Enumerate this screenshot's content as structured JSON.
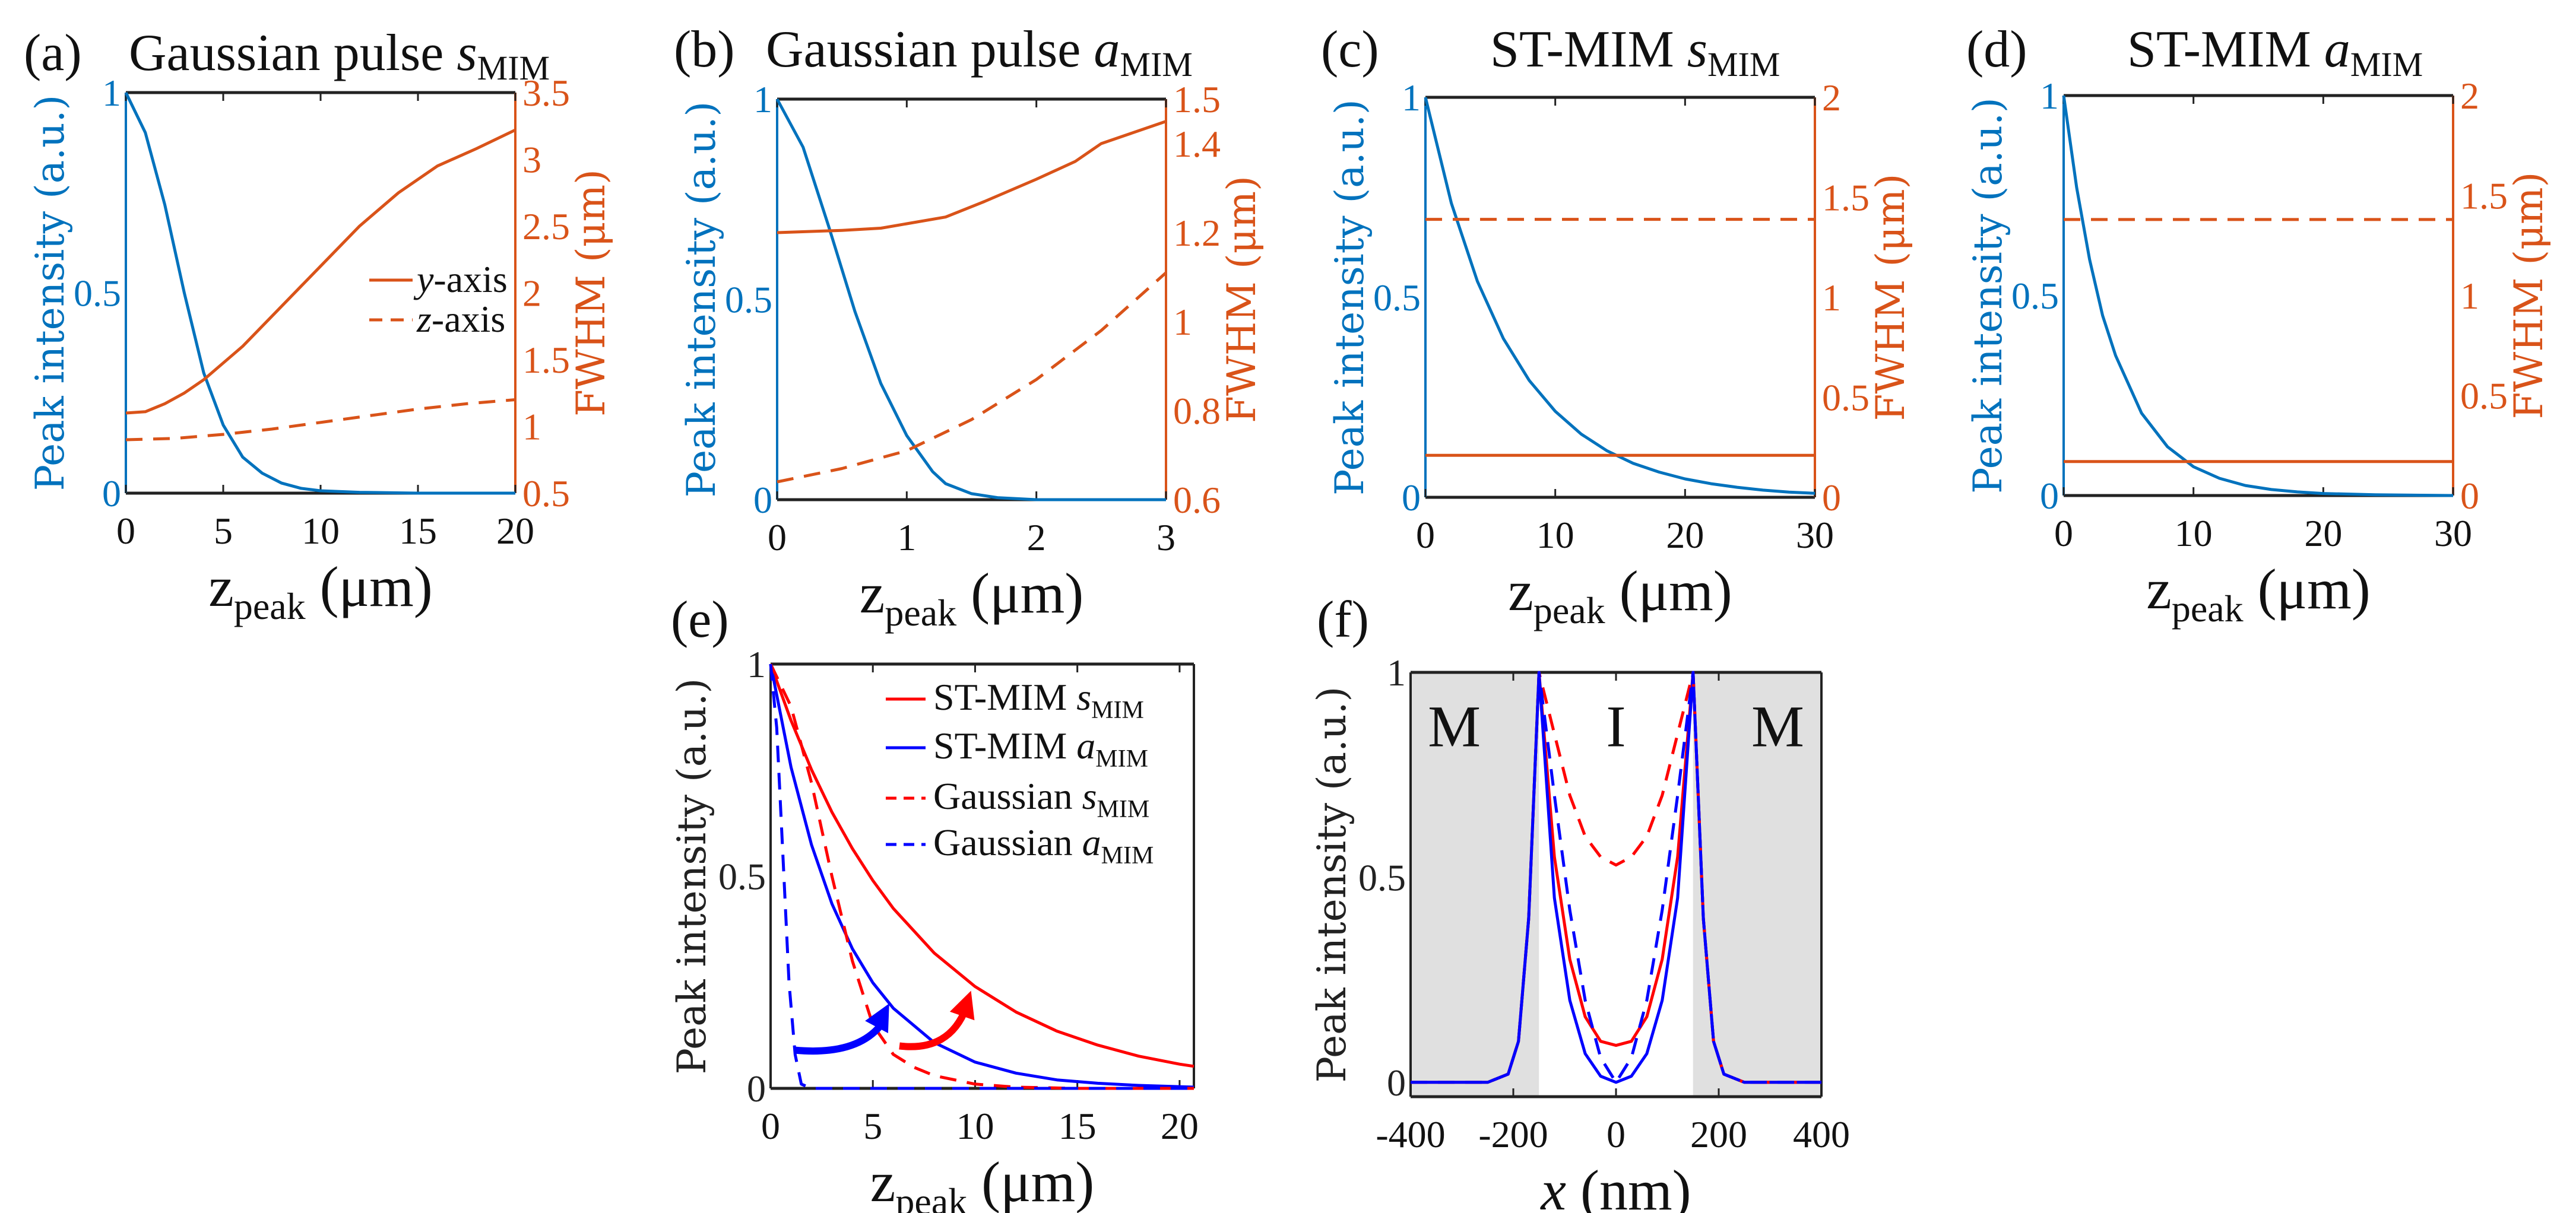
{
  "colors": {
    "intensity": "#0072BD",
    "fwhm": "#D95319",
    "red": "#FF0000",
    "blue": "#0000FF",
    "metal": "#E0E0E0",
    "frame": "#222222"
  },
  "chart_data": [
    {
      "panel": "(a)",
      "type": "line",
      "title": {
        "main": "Gaussian pulse ",
        "var": "s",
        "sub": "MIM"
      },
      "xlabel": {
        "var": "z",
        "sub": "peak",
        "unit": " (μm)"
      },
      "ylabel": "Peak intensity (a.u.)",
      "y2label": "FWHM (μm)",
      "xlim": [
        0,
        20
      ],
      "ylim": [
        0,
        1
      ],
      "y2lim": [
        0.5,
        3.5
      ],
      "xticks": [
        "0",
        "5",
        "10",
        "15",
        "20"
      ],
      "yticks": [
        "0",
        "0.5",
        "1"
      ],
      "y2ticks": [
        "0.5",
        "1",
        "1.5",
        "2",
        "2.5",
        "3",
        "3.5"
      ],
      "legend": [
        {
          "var": "y",
          "text": "-axis",
          "dash": false
        },
        {
          "var": "z",
          "text": "-axis",
          "dash": true
        }
      ],
      "series": [
        {
          "axis": "left",
          "color": "intensity",
          "dash": false,
          "x": [
            0,
            1,
            2,
            3,
            4,
            5,
            6,
            7,
            8,
            9,
            10,
            12,
            15,
            20
          ],
          "y": [
            1,
            0.9,
            0.72,
            0.5,
            0.3,
            0.17,
            0.09,
            0.05,
            0.025,
            0.012,
            0.006,
            0.002,
            0,
            0
          ]
        },
        {
          "name": "y-axis",
          "axis": "right",
          "color": "fwhm",
          "dash": false,
          "x": [
            0,
            1,
            2,
            3,
            4,
            6,
            8,
            10,
            12,
            14,
            16,
            18,
            20
          ],
          "y": [
            1.1,
            1.11,
            1.17,
            1.25,
            1.35,
            1.6,
            1.9,
            2.2,
            2.5,
            2.75,
            2.95,
            3.08,
            3.22
          ]
        },
        {
          "name": "z-axis",
          "axis": "right",
          "color": "fwhm",
          "dash": true,
          "x": [
            0,
            2.5,
            5,
            7.5,
            10,
            12.5,
            15,
            17.5,
            20
          ],
          "y": [
            0.9,
            0.91,
            0.94,
            0.98,
            1.03,
            1.08,
            1.13,
            1.17,
            1.2
          ]
        }
      ]
    },
    {
      "panel": "(b)",
      "type": "line",
      "title": {
        "main": "Gaussian pulse ",
        "var": "a",
        "sub": "MIM"
      },
      "xlabel": {
        "var": "z",
        "sub": "peak",
        "unit": "  (μm)"
      },
      "ylabel": "Peak intensity (a.u.)",
      "y2label": "FWHM (μm)",
      "xlim": [
        0,
        3
      ],
      "ylim": [
        0,
        1
      ],
      "y2lim": [
        0.6,
        1.5
      ],
      "xticks": [
        "0",
        "1",
        "2",
        "3"
      ],
      "yticks": [
        "0",
        "0.5",
        "1"
      ],
      "y2ticks": [
        "0.6",
        "0.8",
        "1",
        "1.2",
        "1.4",
        "1.5"
      ],
      "series": [
        {
          "axis": "left",
          "color": "intensity",
          "dash": false,
          "x": [
            0,
            0.2,
            0.4,
            0.6,
            0.8,
            1.0,
            1.2,
            1.3,
            1.5,
            1.7,
            2.0,
            3.0
          ],
          "y": [
            1,
            0.88,
            0.68,
            0.47,
            0.29,
            0.16,
            0.07,
            0.04,
            0.015,
            0.005,
            0,
            0
          ]
        },
        {
          "axis": "right",
          "color": "fwhm",
          "dash": false,
          "x": [
            0,
            0.5,
            0.8,
            1.0,
            1.3,
            1.6,
            2.0,
            2.3,
            2.5,
            2.7,
            3.0
          ],
          "y": [
            1.2,
            1.205,
            1.21,
            1.22,
            1.235,
            1.27,
            1.32,
            1.36,
            1.4,
            1.42,
            1.45
          ]
        },
        {
          "axis": "right",
          "color": "fwhm",
          "dash": true,
          "x": [
            0,
            0.5,
            1.0,
            1.5,
            2.0,
            2.5,
            3.0
          ],
          "y": [
            0.64,
            0.67,
            0.71,
            0.78,
            0.87,
            0.98,
            1.11
          ]
        }
      ]
    },
    {
      "panel": "(c)",
      "type": "line",
      "title": {
        "main": "ST-MIM ",
        "var": "s",
        "sub": "MIM"
      },
      "xlabel": {
        "var": "z",
        "sub": "peak",
        "unit": "  (μm)"
      },
      "ylabel": "Peak intensity (a.u.)",
      "y2label": "FWHM (μm)",
      "xlim": [
        0,
        30
      ],
      "ylim": [
        0,
        1
      ],
      "y2lim": [
        0,
        2
      ],
      "xticks": [
        "0",
        "10",
        "20",
        "30"
      ],
      "yticks": [
        "0",
        "0.5",
        "1"
      ],
      "y2ticks": [
        "0",
        "0.5",
        "1",
        "1.5",
        "2"
      ],
      "series": [
        {
          "axis": "left",
          "color": "intensity",
          "dash": false,
          "x": [
            0,
            2,
            4,
            6,
            8,
            10,
            12,
            14,
            16,
            18,
            20,
            22,
            24,
            26,
            28,
            30
          ],
          "y": [
            1,
            0.735,
            0.54,
            0.397,
            0.292,
            0.215,
            0.158,
            0.116,
            0.085,
            0.063,
            0.046,
            0.034,
            0.025,
            0.018,
            0.013,
            0.01
          ]
        },
        {
          "axis": "right",
          "color": "fwhm",
          "dash": false,
          "x": [
            0,
            30
          ],
          "y": [
            0.21,
            0.21
          ]
        },
        {
          "axis": "right",
          "color": "fwhm",
          "dash": true,
          "x": [
            0,
            30
          ],
          "y": [
            1.39,
            1.39
          ]
        }
      ]
    },
    {
      "panel": "(d)",
      "type": "line",
      "title": {
        "main": "ST-MIM ",
        "var": "a",
        "sub": "MIM"
      },
      "xlabel": {
        "var": "z",
        "sub": "peak",
        "unit": "  (μm)"
      },
      "ylabel": "Peak intensity (a.u.)",
      "y2label": "FWHM (μm)",
      "xlim": [
        0,
        30
      ],
      "ylim": [
        0,
        1
      ],
      "y2lim": [
        0,
        2
      ],
      "xticks": [
        "0",
        "10",
        "20",
        "30"
      ],
      "yticks": [
        "0",
        "0.5",
        "1"
      ],
      "y2ticks": [
        "0",
        "0.5",
        "1",
        "1.5",
        "2"
      ],
      "series": [
        {
          "axis": "left",
          "color": "intensity",
          "dash": false,
          "x": [
            0,
            1,
            2,
            3,
            4,
            6,
            8,
            10,
            12,
            14,
            16,
            18,
            20,
            24,
            30
          ],
          "y": [
            1,
            0.77,
            0.59,
            0.45,
            0.35,
            0.206,
            0.122,
            0.072,
            0.043,
            0.025,
            0.015,
            0.009,
            0.005,
            0.002,
            0
          ]
        },
        {
          "axis": "right",
          "color": "fwhm",
          "dash": false,
          "x": [
            0,
            30
          ],
          "y": [
            0.17,
            0.17
          ]
        },
        {
          "axis": "right",
          "color": "fwhm",
          "dash": true,
          "x": [
            0,
            30
          ],
          "y": [
            1.38,
            1.38
          ]
        }
      ]
    },
    {
      "panel": "(e)",
      "type": "line",
      "xlabel": {
        "var": "z",
        "sub": "peak",
        "unit": "  (μm)"
      },
      "ylabel": "Peak intensity (a.u.)",
      "xlim": [
        0,
        20.7
      ],
      "ylim": [
        0,
        1
      ],
      "xticks": [
        "0",
        "5",
        "10",
        "15",
        "20"
      ],
      "yticks": [
        "0",
        "0.5",
        "1"
      ],
      "legend": [
        {
          "text": "ST-MIM ",
          "var": "s",
          "sub": "MIM",
          "color": "red",
          "dash": false
        },
        {
          "text": "ST-MIM ",
          "var": "a",
          "sub": "MIM",
          "color": "blue",
          "dash": false
        },
        {
          "text": "Gaussian ",
          "var": "s",
          "sub": "MIM",
          "color": "red",
          "dash": true
        },
        {
          "text": "Gaussian ",
          "var": "a",
          "sub": "MIM",
          "color": "blue",
          "dash": true
        }
      ],
      "series": [
        {
          "name": "ST-MIM sMIM",
          "color": "red",
          "dash": false,
          "x": [
            0,
            1,
            2,
            3,
            4,
            5,
            6,
            8,
            10,
            12,
            14,
            16,
            18,
            20,
            20.7
          ],
          "y": [
            1,
            0.867,
            0.751,
            0.651,
            0.565,
            0.49,
            0.424,
            0.319,
            0.24,
            0.18,
            0.135,
            0.102,
            0.076,
            0.057,
            0.052
          ]
        },
        {
          "name": "ST-MIM aMIM",
          "color": "blue",
          "dash": false,
          "x": [
            0,
            1,
            2,
            3,
            4,
            5,
            6,
            8,
            10,
            12,
            14,
            16,
            18,
            20,
            20.7
          ],
          "y": [
            1,
            0.757,
            0.574,
            0.435,
            0.329,
            0.249,
            0.189,
            0.108,
            0.062,
            0.036,
            0.02,
            0.012,
            0.007,
            0.004,
            0.003
          ]
        },
        {
          "name": "Gaussian sMIM",
          "color": "red",
          "dash": true,
          "x": [
            0,
            1,
            2,
            3,
            4,
            5,
            6,
            7,
            8,
            10,
            12,
            15,
            20.7
          ],
          "y": [
            1,
            0.9,
            0.72,
            0.5,
            0.3,
            0.15,
            0.08,
            0.05,
            0.03,
            0.01,
            0.003,
            0,
            0
          ]
        },
        {
          "name": "Gaussian aMIM",
          "color": "blue",
          "dash": true,
          "x": [
            0,
            0.3,
            0.6,
            0.9,
            1.2,
            1.5,
            2,
            20.7
          ],
          "y": [
            1,
            0.85,
            0.55,
            0.25,
            0.08,
            0.01,
            0,
            0
          ]
        }
      ],
      "annotations": [
        {
          "type": "arrow",
          "color": "blue",
          "from": [
            1.2,
            0.09
          ],
          "to": [
            5.8,
            0.2
          ]
        },
        {
          "type": "arrow",
          "color": "red",
          "from": [
            6.3,
            0.1
          ],
          "to": [
            9.8,
            0.23
          ]
        }
      ]
    },
    {
      "panel": "(f)",
      "type": "line",
      "xlabel": {
        "var": "x",
        "sub": "",
        "unit": " (nm)"
      },
      "ylabel": "Peak intensity (a.u.)",
      "xlim": [
        -400,
        400
      ],
      "ylim": [
        -0.035,
        1
      ],
      "xticks": [
        "-400",
        "-200",
        "0",
        "200",
        "400"
      ],
      "yticks": [
        "0",
        "0.5",
        "1"
      ],
      "shaded_regions": [
        [
          -400,
          -150
        ],
        [
          150,
          400
        ]
      ],
      "region_labels": [
        "M",
        "I",
        "M"
      ],
      "series": [
        {
          "color": "red",
          "dash": false,
          "x": [
            -400,
            -250,
            -210,
            -190,
            -170,
            -150,
            -120,
            -90,
            -60,
            -30,
            0,
            30,
            60,
            90,
            120,
            150,
            170,
            190,
            210,
            250,
            400
          ],
          "y": [
            0,
            0,
            0.02,
            0.1,
            0.4,
            1,
            0.55,
            0.3,
            0.16,
            0.1,
            0.09,
            0.1,
            0.16,
            0.3,
            0.55,
            1,
            0.4,
            0.1,
            0.02,
            0,
            0
          ]
        },
        {
          "color": "blue",
          "dash": false,
          "x": [
            -400,
            -250,
            -210,
            -190,
            -170,
            -150,
            -120,
            -90,
            -60,
            -30,
            0,
            30,
            60,
            90,
            120,
            150,
            170,
            190,
            210,
            250,
            400
          ],
          "y": [
            0,
            0,
            0.02,
            0.1,
            0.4,
            1,
            0.45,
            0.2,
            0.07,
            0.015,
            0,
            0.015,
            0.07,
            0.2,
            0.45,
            1,
            0.4,
            0.1,
            0.02,
            0,
            0
          ]
        },
        {
          "color": "red",
          "dash": true,
          "x": [
            -400,
            -250,
            -210,
            -190,
            -170,
            -150,
            -120,
            -90,
            -60,
            -30,
            0,
            30,
            60,
            90,
            120,
            150,
            170,
            190,
            210,
            250,
            400
          ],
          "y": [
            0,
            0,
            0.02,
            0.1,
            0.4,
            1,
            0.85,
            0.7,
            0.6,
            0.55,
            0.53,
            0.55,
            0.6,
            0.7,
            0.85,
            1,
            0.4,
            0.1,
            0.02,
            0,
            0
          ]
        },
        {
          "color": "blue",
          "dash": true,
          "x": [
            -400,
            -250,
            -210,
            -190,
            -170,
            -150,
            -120,
            -90,
            -60,
            -30,
            0,
            30,
            60,
            90,
            120,
            150,
            170,
            190,
            210,
            250,
            400
          ],
          "y": [
            0,
            0,
            0.02,
            0.1,
            0.4,
            1,
            0.7,
            0.42,
            0.2,
            0.06,
            0,
            0.06,
            0.2,
            0.42,
            0.7,
            1,
            0.4,
            0.1,
            0.02,
            0,
            0
          ]
        }
      ]
    }
  ]
}
